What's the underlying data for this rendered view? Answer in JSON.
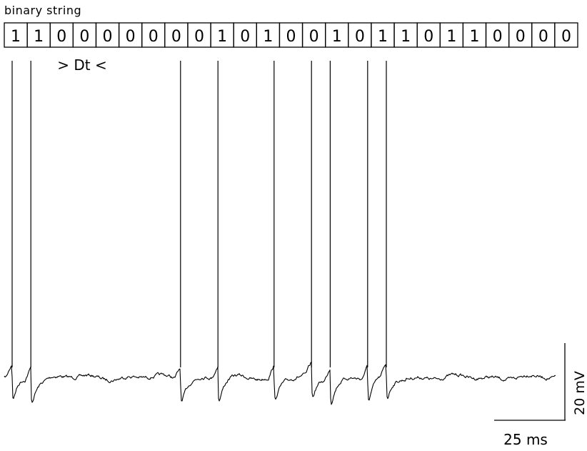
{
  "caption": "binary string",
  "bits": [
    "1",
    "1",
    "0",
    "0",
    "0",
    "0",
    "0",
    "0",
    "0",
    "1",
    "0",
    "1",
    "0",
    "0",
    "1",
    "0",
    "1",
    "1",
    "0",
    "1",
    "1",
    "0",
    "0",
    "0",
    "0"
  ],
  "dt_label": "> Dt <",
  "scale_bar": {
    "voltage_label": "20 mV",
    "time_label": "25 ms"
  },
  "trace_color": "#000000"
}
